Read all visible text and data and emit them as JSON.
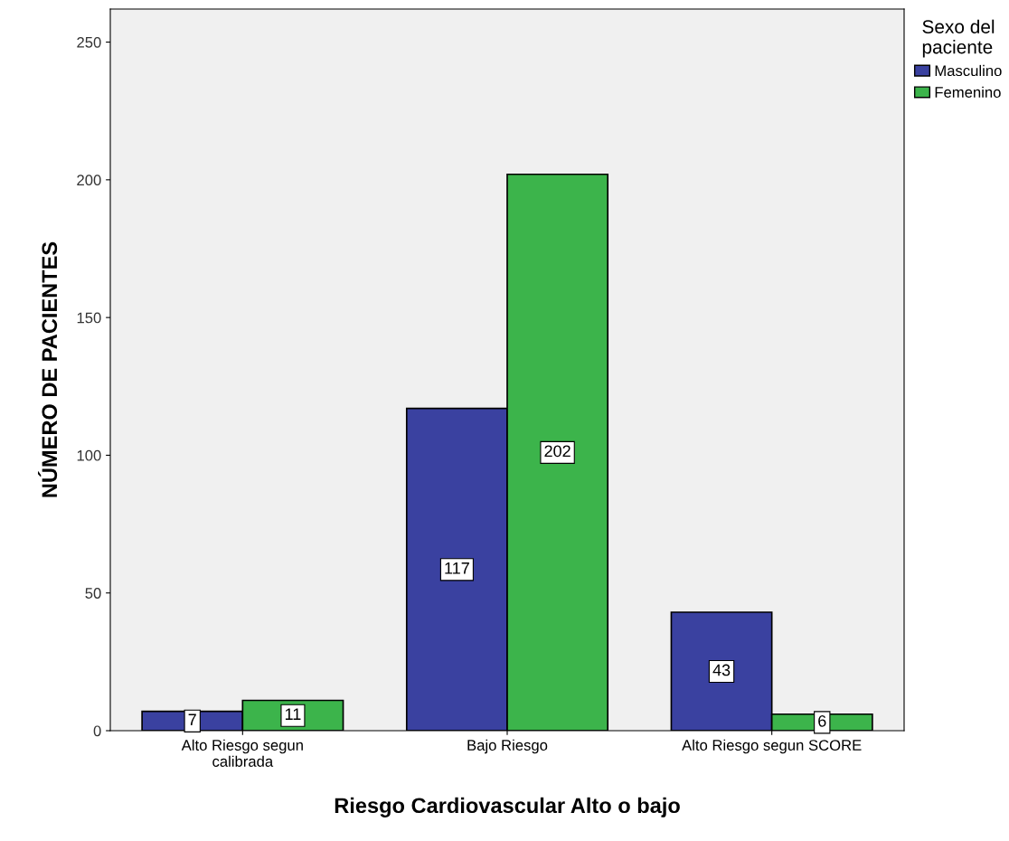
{
  "chart_data": {
    "type": "bar",
    "xlabel": "Riesgo Cardiovascular Alto o bajo",
    "ylabel": "NÚMERO DE PACIENTES",
    "categories": [
      "Alto Riesgo segun\ncalibrada",
      "Bajo Riesgo",
      "Alto Riesgo segun SCORE"
    ],
    "series": [
      {
        "name": "Masculino",
        "color": "#3a41a0",
        "values": [
          7,
          117,
          43
        ]
      },
      {
        "name": "Femenino",
        "color": "#3cb44b",
        "values": [
          11,
          202,
          6
        ]
      }
    ],
    "legend_title": "Sexo del\npaciente",
    "legend": "top right",
    "ylim": [
      0,
      262
    ],
    "yticks": [
      0,
      50,
      100,
      150,
      200,
      250
    ],
    "data_labels": true,
    "grid": false
  }
}
